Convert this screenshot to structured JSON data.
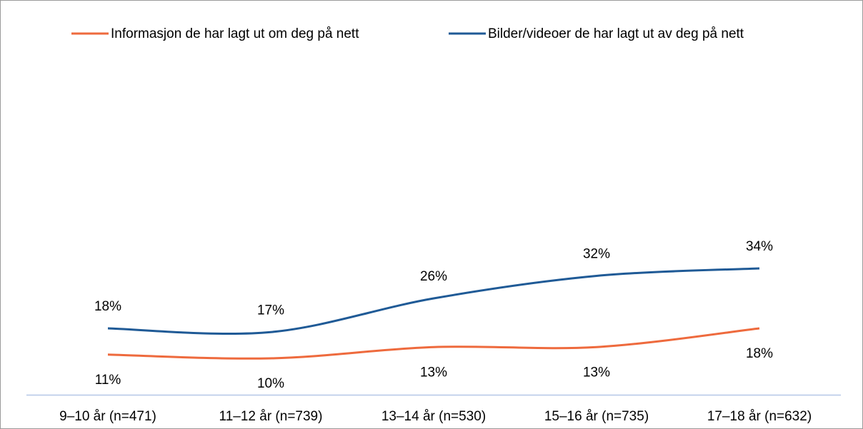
{
  "chart_data": {
    "type": "line",
    "categories": [
      "9–10 år (n=471)",
      "11–12 år (n=739)",
      "13–14 år (n=530)",
      "15–16 år (n=735)",
      "17–18 år (n=632)"
    ],
    "series": [
      {
        "name": "Informasjon de har lagt ut om deg på nett",
        "color": "#ee6a3d",
        "values": [
          11,
          10,
          13,
          13,
          18
        ],
        "value_labels": [
          "11%",
          "10%",
          "13%",
          "13%",
          "18%"
        ]
      },
      {
        "name": "Bilder/videoer de har lagt ut av deg på nett",
        "color": "#1f5a96",
        "values": [
          18,
          17,
          26,
          32,
          34
        ],
        "value_labels": [
          "18%",
          "17%",
          "26%",
          "32%",
          "34%"
        ]
      }
    ],
    "ylim": [
      0,
      90
    ],
    "legend": "top"
  }
}
